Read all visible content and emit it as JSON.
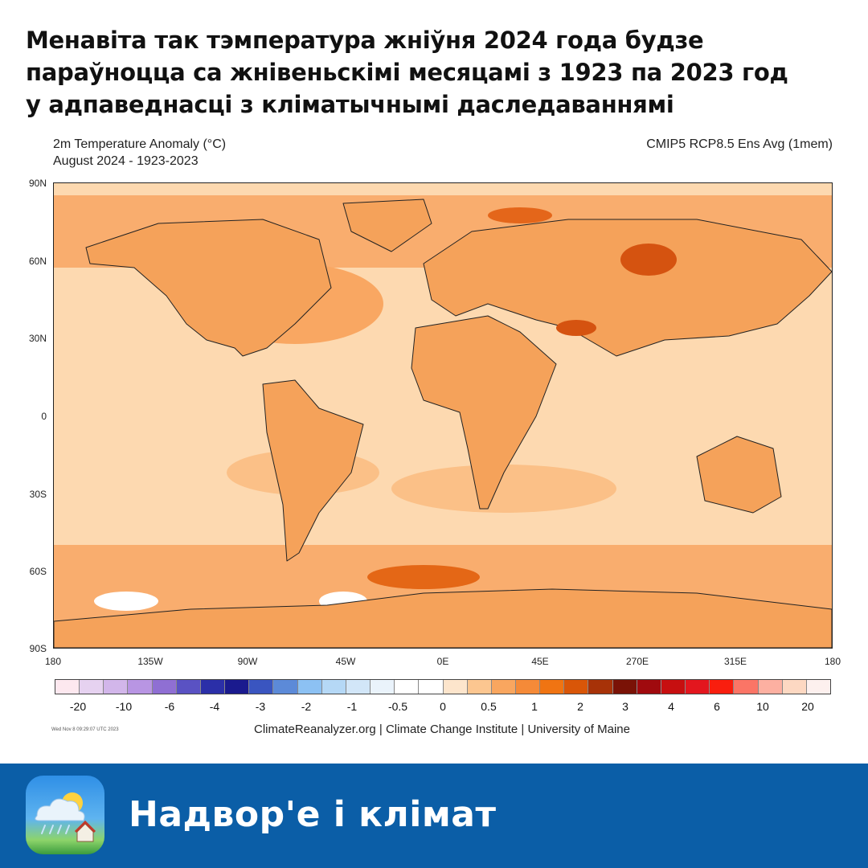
{
  "header": {
    "lines": [
      "Менавіта так тэмпература жніўня 2024 года будзе",
      "параўноцца са жнівеньскімі месяцамі з 1923 па 2023 год",
      "у адпаведнасці з кліматычнымі даследаваннямі"
    ]
  },
  "map": {
    "title": "2m Temperature Anomaly (°C)",
    "subtitle": "August 2024 - 1923-2023",
    "model": "CMIP5 RCP8.5 Ens Avg (1mem)",
    "lat_labels": [
      "90N",
      "60N",
      "30N",
      "0",
      "30S",
      "60S",
      "90S"
    ],
    "lon_labels": [
      "180",
      "135W",
      "90W",
      "45W",
      "0E",
      "45E",
      "270E",
      "315E",
      "180"
    ],
    "ocean_color": "#fdd9b0",
    "land_color": "#f5a25a"
  },
  "colorbar": {
    "colors": [
      "#fde8ef",
      "#e6d2f0",
      "#d2b6ea",
      "#b895e3",
      "#8f6fd3",
      "#5a52c3",
      "#2b2fa8",
      "#1a1a8e",
      "#3a55c0",
      "#5c8ad8",
      "#8cc1f3",
      "#b5d8f6",
      "#d2e6f8",
      "#eaf3fb",
      "#ffffff",
      "#ffffff",
      "#fde5cc",
      "#fcc690",
      "#f9a65f",
      "#f58a38",
      "#f07412",
      "#d95608",
      "#a73208",
      "#7a1206",
      "#a00a0e",
      "#c70f10",
      "#e3161e",
      "#f91e0e",
      "#fb7566",
      "#fdb0a1",
      "#fdd8c2",
      "#fdf0ee"
    ],
    "labels": [
      "-20",
      "-10",
      "-6",
      "-4",
      "-3",
      "-2",
      "-1",
      "-0.5",
      "0",
      "0.5",
      "1",
      "2",
      "3",
      "4",
      "6",
      "10",
      "20"
    ]
  },
  "timestamp": "Wed Nov  8 09:29:07 UTC 2023",
  "credits": "ClimateReanalyzer.org | Climate Change Institute | University of Maine",
  "footer": {
    "title": "Надвор'е і клімат",
    "icon": "weather-app-icon"
  }
}
